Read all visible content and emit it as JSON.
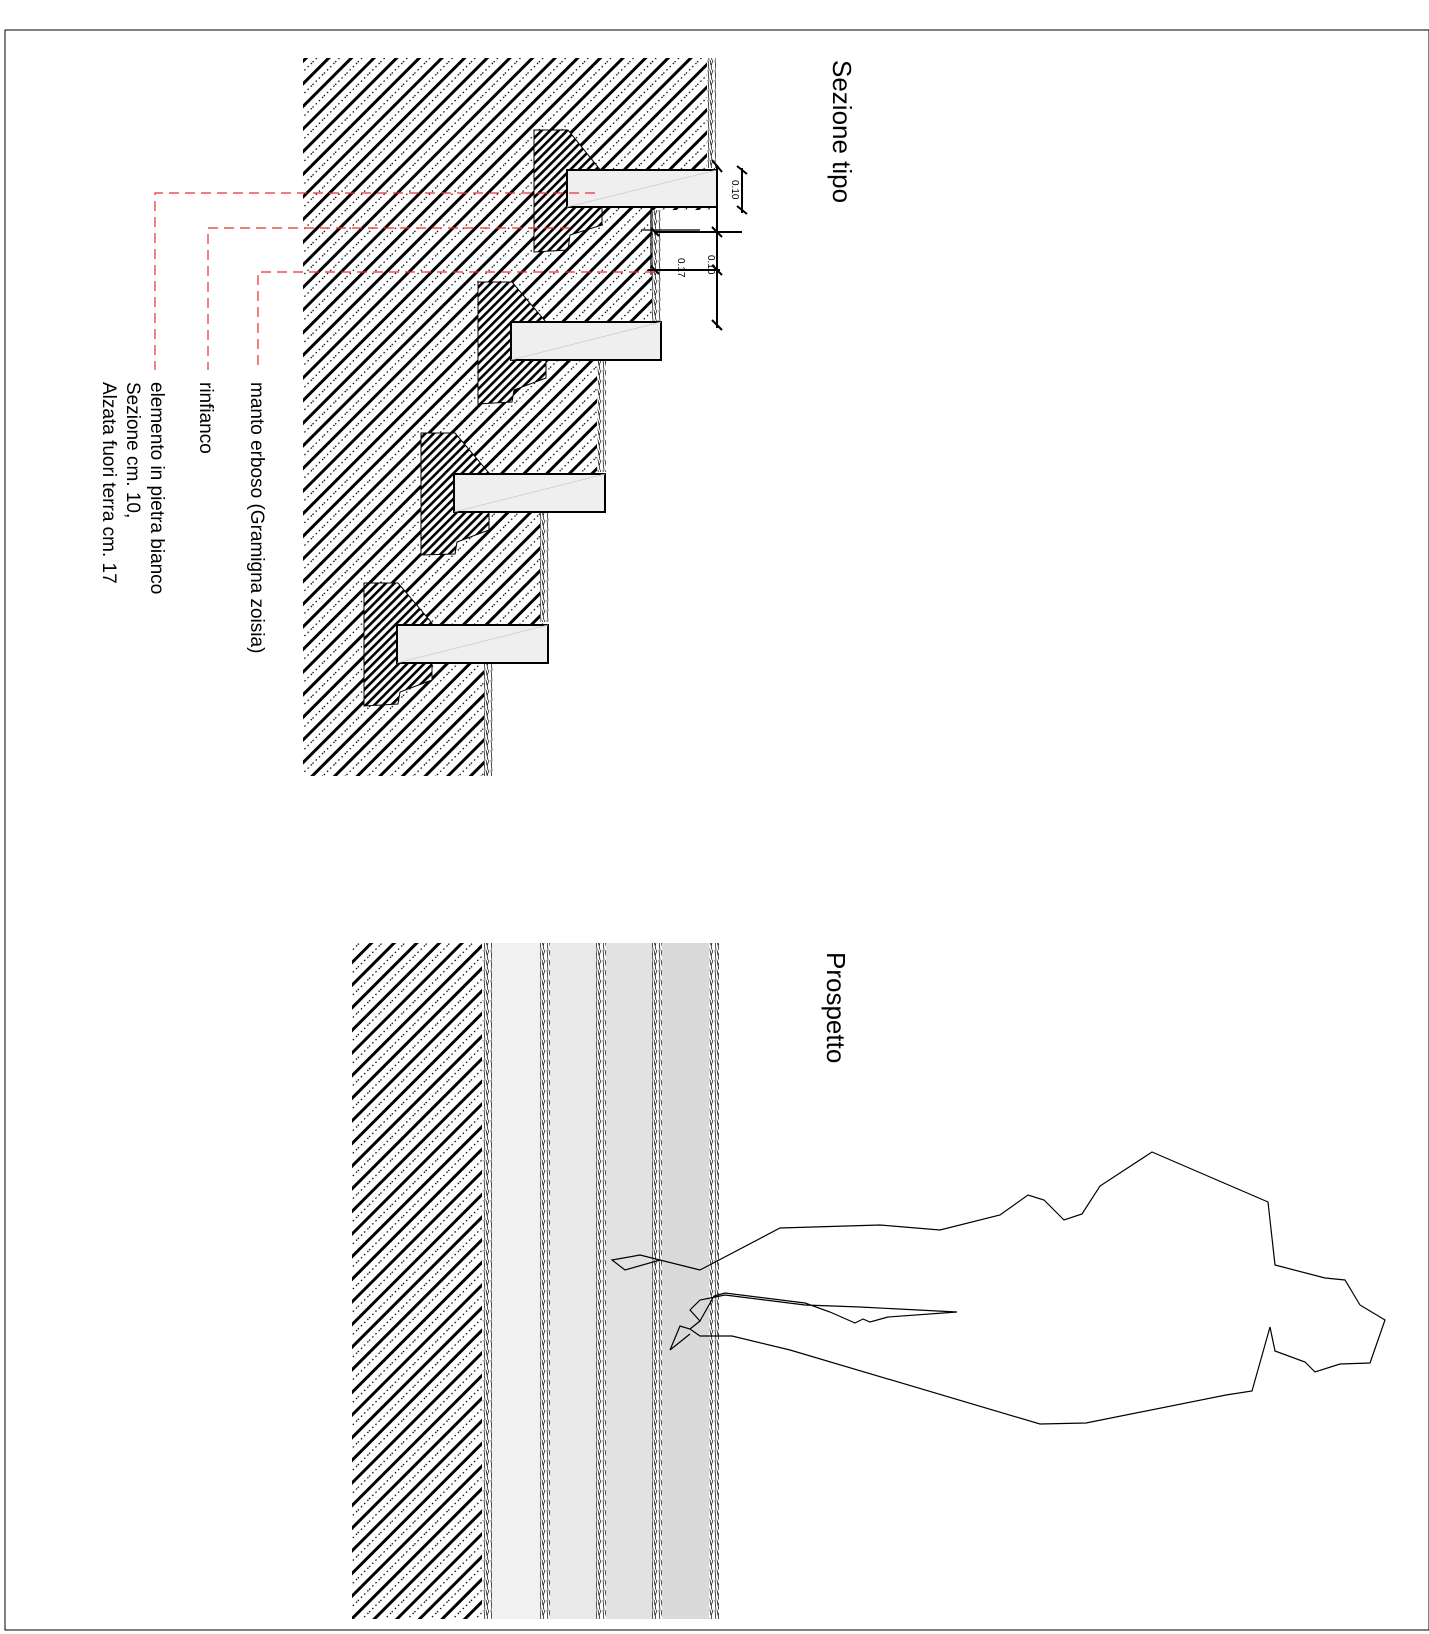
{
  "section": {
    "title": "Sezione tipo",
    "labels": {
      "manto": "manto erboso (Gramigna zoisia)",
      "rinfianco": "rinfianco",
      "elemento_line1": "elemento in pietra bianco",
      "elemento_line2": "Sezione cm. 10,",
      "elemento_line3": "Alzata fuori terra cm. 17"
    },
    "dimensions": [
      "0.10",
      "0.10",
      "0.17"
    ]
  },
  "elevation": {
    "title": "Prospetto"
  },
  "colors": {
    "line": "#000000",
    "leader": "#e8302a",
    "step_fill": "#efefef",
    "band_fills": [
      "#f1f1f1",
      "#e9e9e9",
      "#e2e2e2",
      "#dadada"
    ]
  }
}
